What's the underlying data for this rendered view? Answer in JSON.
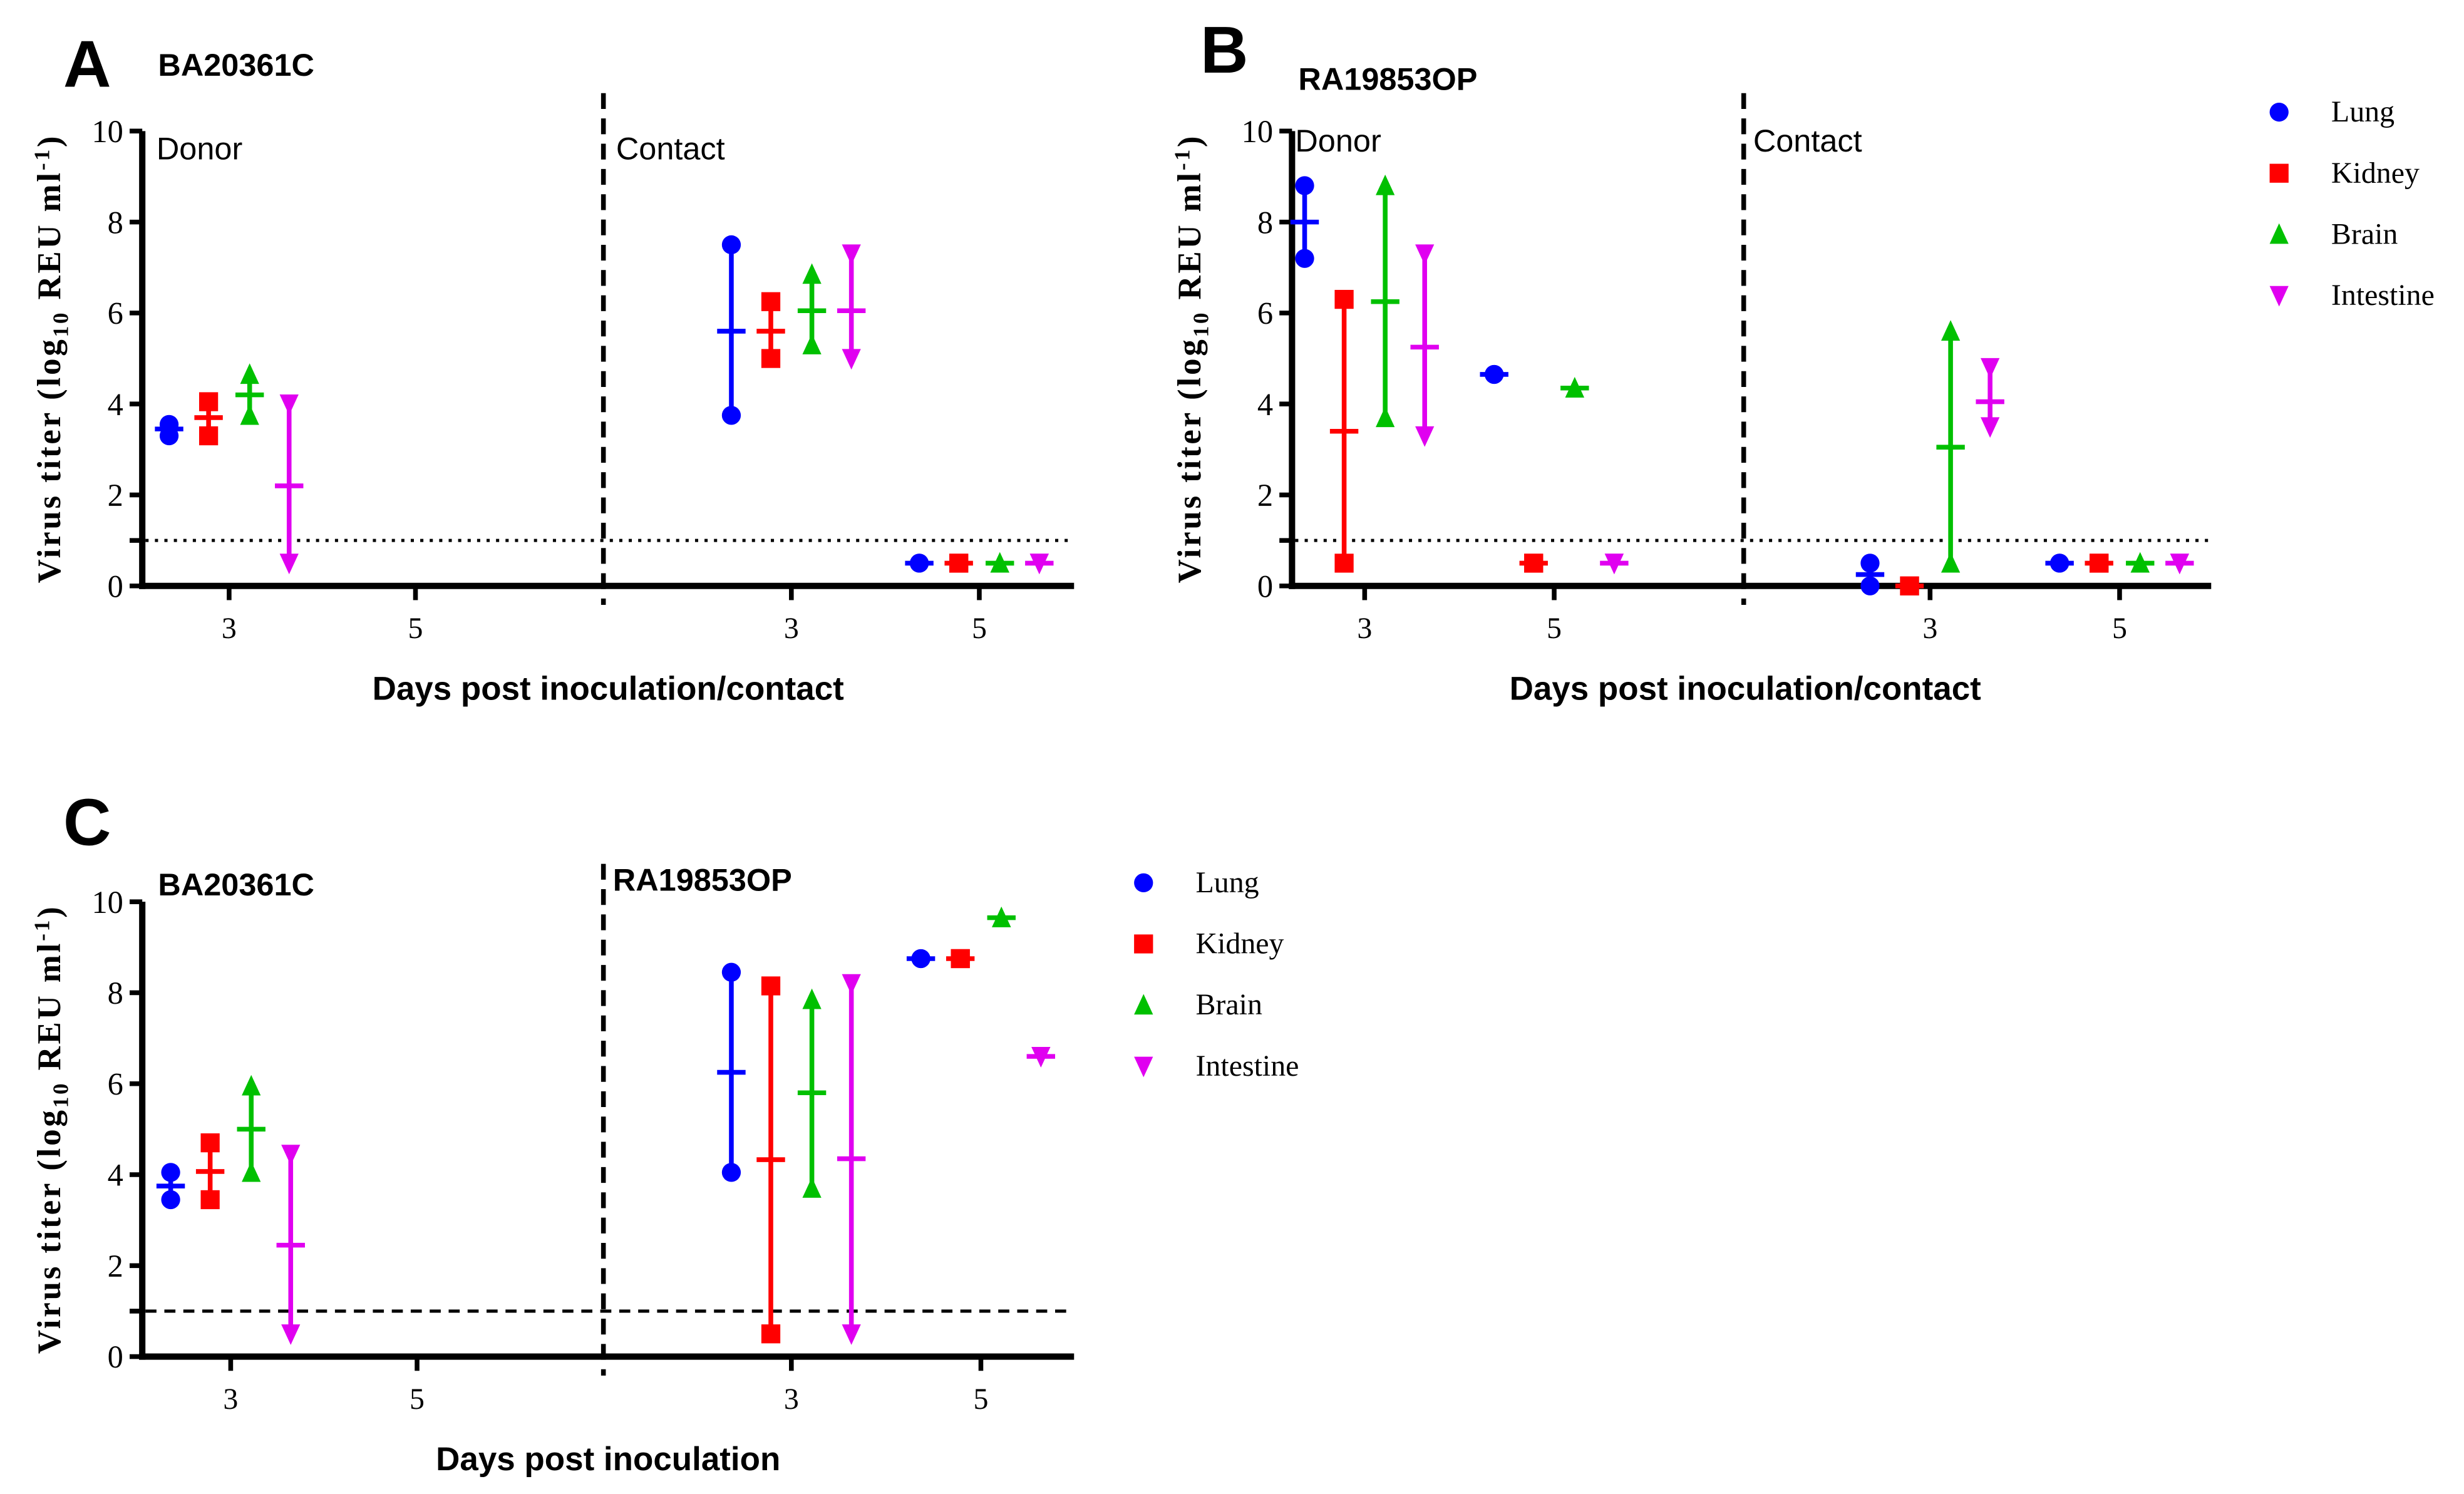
{
  "legend": [
    {
      "name": "Lung",
      "color": "#0000ff",
      "marker": "circle"
    },
    {
      "name": "Kidney",
      "color": "#ff0000",
      "marker": "square"
    },
    {
      "name": "Brain",
      "color": "#00c000",
      "marker": "triangle-up"
    },
    {
      "name": "Intestine",
      "color": "#e000f0",
      "marker": "triangle-down"
    }
  ],
  "ylabel": {
    "pre": "Virus titer (log",
    "sub": "10",
    "mid": " REU ml",
    "sup": "-1",
    "post": ")"
  },
  "chart_data": [
    {
      "type": "scatter",
      "panel_letter": "A",
      "title": "BA20361C",
      "group_labels": [
        "Donor",
        "Contact"
      ],
      "xlabel": "Days post inoculation/contact",
      "ylim": [
        0,
        10
      ],
      "yticks": [
        "0",
        "2",
        "4",
        "6",
        "8",
        "10"
      ],
      "xticks": [
        "3",
        "5",
        "3",
        "5"
      ],
      "threshold": 1,
      "threshold_style": "dotted",
      "legend": false,
      "cells": [
        {
          "group": 0,
          "day": "3",
          "series": [
            {
              "name": "Lung",
              "points": [
                3.3,
                3.55
              ],
              "mean": 3.45
            },
            {
              "name": "Kidney",
              "points": [
                3.3,
                4.05
              ],
              "mean": 3.7
            },
            {
              "name": "Brain",
              "points": [
                3.75,
                4.65
              ],
              "mean": 4.2
            },
            {
              "name": "Intestine",
              "points": [
                0.5,
                4.0
              ],
              "mean": 2.2
            }
          ]
        },
        {
          "group": 1,
          "day": "3",
          "series": [
            {
              "name": "Lung",
              "points": [
                3.75,
                7.5
              ],
              "mean": 5.6
            },
            {
              "name": "Kidney",
              "points": [
                5.0,
                6.25
              ],
              "mean": 5.6
            },
            {
              "name": "Brain",
              "points": [
                5.3,
                6.85
              ],
              "mean": 6.05
            },
            {
              "name": "Intestine",
              "points": [
                5.0,
                7.3
              ],
              "mean": 6.05
            }
          ]
        },
        {
          "group": 1,
          "day": "5",
          "series": [
            {
              "name": "Lung",
              "points": [
                0.5,
                0.5
              ],
              "mean": 0.5
            },
            {
              "name": "Kidney",
              "points": [
                0.5,
                0.5
              ],
              "mean": 0.5
            },
            {
              "name": "Brain",
              "points": [
                0.5,
                0.5
              ],
              "mean": 0.5
            },
            {
              "name": "Intestine",
              "points": [
                0.5,
                0.5
              ],
              "mean": 0.5
            }
          ]
        }
      ]
    },
    {
      "type": "scatter",
      "panel_letter": "B",
      "title": "RA19853OP",
      "group_labels": [
        "Donor",
        "Contact"
      ],
      "xlabel": "Days post inoculation/contact",
      "ylim": [
        0,
        10
      ],
      "yticks": [
        "0",
        "2",
        "4",
        "6",
        "8",
        "10"
      ],
      "xticks": [
        "3",
        "5",
        "3",
        "5"
      ],
      "threshold": 1,
      "threshold_style": "dotted",
      "legend": "top-right",
      "cells": [
        {
          "group": 0,
          "day": "3",
          "series": [
            {
              "name": "Lung",
              "points": [
                7.2,
                8.8
              ],
              "mean": 8.0
            },
            {
              "name": "Kidney",
              "points": [
                0.5,
                6.3
              ],
              "mean": 3.4
            },
            {
              "name": "Brain",
              "points": [
                3.7,
                8.8
              ],
              "mean": 6.25
            },
            {
              "name": "Intestine",
              "points": [
                3.3,
                7.3
              ],
              "mean": 5.25
            }
          ]
        },
        {
          "group": 0,
          "day": "5",
          "series": [
            {
              "name": "Lung",
              "points": [
                4.65,
                4.65
              ],
              "mean": 4.65
            },
            {
              "name": "Kidney",
              "points": [
                0.5,
                0.5
              ],
              "mean": 0.5
            },
            {
              "name": "Brain",
              "points": [
                4.35,
                4.35
              ],
              "mean": 4.35
            },
            {
              "name": "Intestine",
              "points": [
                0.5,
                0.5
              ],
              "mean": 0.5
            }
          ]
        },
        {
          "group": 1,
          "day": "3",
          "series": [
            {
              "name": "Lung",
              "points": [
                0.0,
                0.5
              ],
              "mean": 0.25
            },
            {
              "name": "Kidney",
              "points": [
                0.0,
                0.0
              ],
              "mean": 0.0
            },
            {
              "name": "Brain",
              "points": [
                0.5,
                5.6
              ],
              "mean": 3.05
            },
            {
              "name": "Intestine",
              "points": [
                3.5,
                4.8
              ],
              "mean": 4.05
            }
          ]
        },
        {
          "group": 1,
          "day": "5",
          "series": [
            {
              "name": "Lung",
              "points": [
                0.5,
                0.5
              ],
              "mean": 0.5
            },
            {
              "name": "Kidney",
              "points": [
                0.5,
                0.5
              ],
              "mean": 0.5
            },
            {
              "name": "Brain",
              "points": [
                0.5,
                0.5
              ],
              "mean": 0.5
            },
            {
              "name": "Intestine",
              "points": [
                0.5,
                0.5
              ],
              "mean": 0.5
            }
          ]
        }
      ]
    },
    {
      "type": "scatter",
      "panel_letter": "C",
      "title": "",
      "group_labels": [
        "BA20361C",
        "RA19853OP"
      ],
      "xlabel": "Days post inoculation",
      "ylim": [
        0,
        10
      ],
      "yticks": [
        "0",
        "2",
        "4",
        "6",
        "8",
        "10"
      ],
      "xticks": [
        "3",
        "5",
        "3",
        "5"
      ],
      "threshold": 1,
      "threshold_style": "dashed",
      "legend": "right",
      "cells": [
        {
          "group": 0,
          "day": "3",
          "series": [
            {
              "name": "Lung",
              "points": [
                3.45,
                4.05
              ],
              "mean": 3.75
            },
            {
              "name": "Kidney",
              "points": [
                3.45,
                4.7
              ],
              "mean": 4.07
            },
            {
              "name": "Brain",
              "points": [
                4.05,
                5.95
              ],
              "mean": 5.0
            },
            {
              "name": "Intestine",
              "points": [
                0.5,
                4.45
              ],
              "mean": 2.45
            }
          ]
        },
        {
          "group": 1,
          "day": "3",
          "series": [
            {
              "name": "Lung",
              "points": [
                4.05,
                8.45
              ],
              "mean": 6.25
            },
            {
              "name": "Kidney",
              "points": [
                0.5,
                8.15
              ],
              "mean": 4.33
            },
            {
              "name": "Brain",
              "points": [
                3.7,
                7.85
              ],
              "mean": 5.8
            },
            {
              "name": "Intestine",
              "points": [
                0.5,
                8.2
              ],
              "mean": 4.35
            }
          ]
        },
        {
          "group": 1,
          "day": "5",
          "series": [
            {
              "name": "Lung",
              "points": [
                8.75,
                8.75
              ],
              "mean": 8.75
            },
            {
              "name": "Kidney",
              "points": [
                8.75,
                8.75
              ],
              "mean": 8.75
            },
            {
              "name": "Brain",
              "points": [
                9.65,
                9.65
              ],
              "mean": 9.65
            },
            {
              "name": "Intestine",
              "points": [
                6.6,
                6.6
              ],
              "mean": 6.6
            }
          ]
        }
      ]
    }
  ]
}
